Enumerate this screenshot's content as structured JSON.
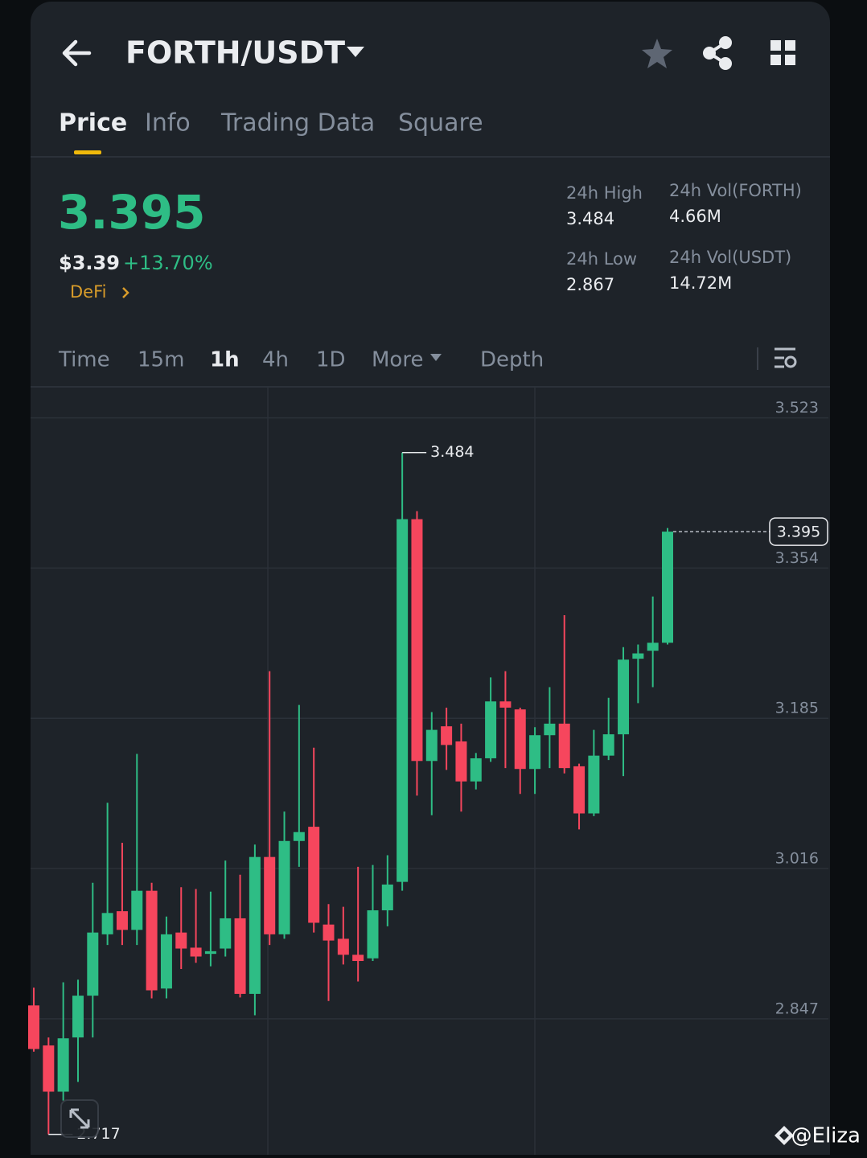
{
  "header": {
    "title": "FORTH/USDT"
  },
  "tabs": [
    "Price",
    "Info",
    "Trading Data",
    "Square"
  ],
  "ticker": {
    "price": "3.395",
    "usd_price": "$3.39",
    "change": "+13.70%",
    "tag": "DeFi",
    "stats": [
      {
        "label": "24h High",
        "value": "3.484"
      },
      {
        "label": "24h Vol(FORTH)",
        "value": "4.66M"
      },
      {
        "label": "24h Low",
        "value": "2.867"
      },
      {
        "label": "24h Vol(USDT)",
        "value": "14.72M"
      }
    ]
  },
  "intervals": [
    "Time",
    "15m",
    "1h",
    "4h",
    "1D",
    "More",
    "Depth"
  ],
  "watermark": "@Eliza",
  "chart_data": {
    "type": "candlestick",
    "open": [
      2.862,
      2.817,
      2.765,
      2.826,
      2.873,
      2.942,
      2.968,
      2.947,
      2.991,
      2.881,
      2.944,
      2.927,
      2.92,
      2.926,
      2.96,
      2.875,
      3.029,
      2.942,
      3.047,
      3.063,
      2.953,
      2.937,
      2.919,
      2.915,
      2.969,
      3.001,
      3.409,
      3.137,
      3.176,
      3.159,
      3.114,
      3.14,
      3.204,
      3.195,
      3.128,
      3.166,
      3.179,
      3.131,
      3.078,
      3.143,
      3.167,
      3.252,
      3.261,
      3.27
    ],
    "high": [
      2.882,
      2.826,
      2.888,
      2.891,
      3.0,
      3.09,
      3.045,
      3.145,
      3.0,
      2.962,
      2.995,
      2.993,
      2.99,
      3.025,
      3.009,
      3.043,
      3.238,
      3.08,
      3.2,
      3.152,
      2.976,
      2.973,
      3.018,
      3.02,
      3.031,
      3.484,
      3.418,
      3.192,
      3.197,
      3.179,
      3.146,
      3.231,
      3.238,
      3.197,
      3.175,
      3.22,
      3.301,
      3.134,
      3.172,
      3.208,
      3.265,
      3.268,
      3.322,
      3.399
    ],
    "low": [
      2.81,
      2.717,
      2.755,
      2.776,
      2.826,
      2.93,
      2.93,
      2.93,
      2.87,
      2.87,
      2.903,
      2.91,
      2.906,
      2.917,
      2.871,
      2.851,
      2.93,
      2.937,
      3.018,
      2.944,
      2.867,
      2.908,
      2.889,
      2.912,
      2.951,
      2.991,
      3.098,
      3.076,
      3.127,
      3.08,
      3.105,
      3.136,
      3.129,
      3.1,
      3.1,
      3.129,
      3.123,
      3.06,
      3.075,
      3.138,
      3.12,
      3.202,
      3.22,
      3.268
    ],
    "close": [
      2.813,
      2.765,
      2.825,
      2.873,
      2.944,
      2.966,
      2.947,
      2.991,
      2.879,
      2.942,
      2.926,
      2.917,
      2.923,
      2.96,
      2.875,
      3.029,
      2.942,
      3.047,
      3.057,
      2.955,
      2.935,
      2.919,
      2.912,
      2.969,
      2.998,
      3.409,
      3.137,
      3.172,
      3.155,
      3.114,
      3.14,
      3.204,
      3.197,
      3.128,
      3.166,
      3.179,
      3.129,
      3.078,
      3.143,
      3.167,
      3.251,
      3.258,
      3.27,
      3.395
    ],
    "ylim": [
      2.694,
      3.557
    ],
    "yticks": [
      3.523,
      3.354,
      3.185,
      3.016,
      2.847
    ],
    "up_color": "#2ebd85",
    "down_color": "#f6465d",
    "grid": true
  }
}
